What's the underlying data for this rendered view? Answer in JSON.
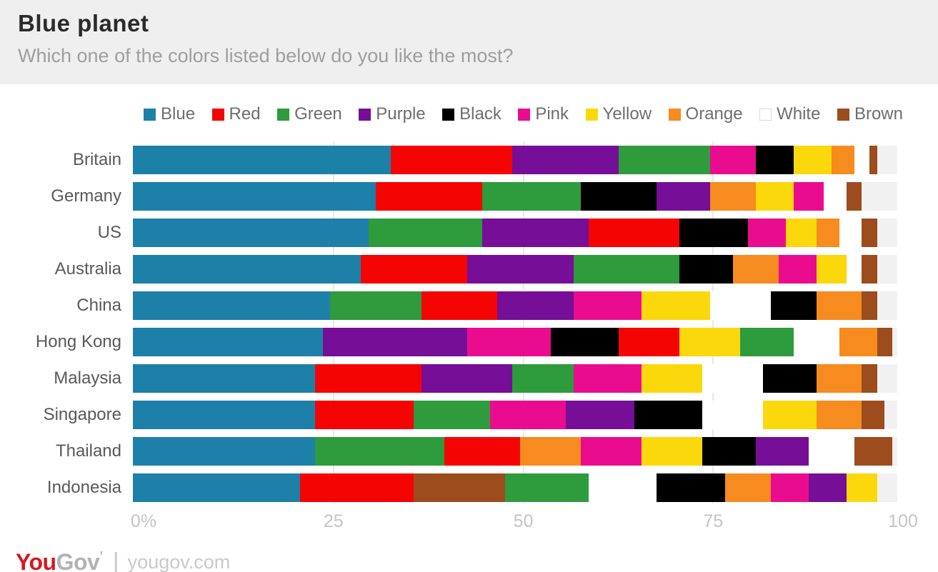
{
  "header": {
    "title": "Blue planet",
    "subtitle": "Which one of the colors listed below do you like the most?"
  },
  "footer": {
    "logo_part1": "You",
    "logo_part2": "Gov",
    "logo_mark": "’",
    "divider": "|",
    "url": "yougov.com"
  },
  "chart_data": {
    "type": "bar",
    "variant": "stacked-horizontal",
    "title": "Blue planet",
    "question": "Which one of the colors listed below do you like the most?",
    "unit": "percent",
    "xlim": [
      0,
      100
    ],
    "x_ticks": [
      {
        "label": "0%",
        "value": 0
      },
      {
        "label": "25",
        "value": 25
      },
      {
        "label": "50",
        "value": 50
      },
      {
        "label": "75",
        "value": 75
      },
      {
        "label": "100",
        "value": 100
      }
    ],
    "grid": "vertical",
    "legend_position": "top",
    "legend": [
      "Blue",
      "Red",
      "Green",
      "Purple",
      "Black",
      "Pink",
      "Yellow",
      "Orange",
      "White",
      "Brown"
    ],
    "palette": {
      "Blue": "#1d80a8",
      "Red": "#f50404",
      "Green": "#2e9b3d",
      "Purple": "#760e97",
      "Black": "#000000",
      "Pink": "#ea0c8f",
      "Yellow": "#fbd80c",
      "Orange": "#f68b1f",
      "White": "#ffffff",
      "Brown": "#9c4c1d"
    },
    "categories": [
      "Britain",
      "Germany",
      "US",
      "Australia",
      "China",
      "Hong Kong",
      "Malaysia",
      "Singapore",
      "Thailand",
      "Indonesia"
    ],
    "rows": [
      {
        "country": "Britain",
        "segments": [
          [
            "Blue",
            34
          ],
          [
            "Red",
            16
          ],
          [
            "Purple",
            14
          ],
          [
            "Green",
            12
          ],
          [
            "Pink",
            6
          ],
          [
            "Black",
            5
          ],
          [
            "Yellow",
            5
          ],
          [
            "Orange",
            3
          ],
          [
            "White",
            2
          ],
          [
            "Brown",
            1
          ]
        ]
      },
      {
        "country": "Germany",
        "segments": [
          [
            "Blue",
            32
          ],
          [
            "Red",
            14
          ],
          [
            "Green",
            13
          ],
          [
            "Black",
            10
          ],
          [
            "Purple",
            7
          ],
          [
            "Orange",
            6
          ],
          [
            "Yellow",
            5
          ],
          [
            "Pink",
            4
          ],
          [
            "White",
            3
          ],
          [
            "Brown",
            2
          ]
        ]
      },
      {
        "country": "US",
        "segments": [
          [
            "Blue",
            31
          ],
          [
            "Green",
            15
          ],
          [
            "Purple",
            14
          ],
          [
            "Red",
            12
          ],
          [
            "Black",
            9
          ],
          [
            "Pink",
            5
          ],
          [
            "Yellow",
            4
          ],
          [
            "Orange",
            3
          ],
          [
            "White",
            3
          ],
          [
            "Brown",
            2
          ]
        ]
      },
      {
        "country": "Australia",
        "segments": [
          [
            "Blue",
            30
          ],
          [
            "Red",
            14
          ],
          [
            "Purple",
            14
          ],
          [
            "Green",
            14
          ],
          [
            "Black",
            7
          ],
          [
            "Orange",
            6
          ],
          [
            "Pink",
            5
          ],
          [
            "Yellow",
            4
          ],
          [
            "White",
            2
          ],
          [
            "Brown",
            2
          ]
        ]
      },
      {
        "country": "China",
        "segments": [
          [
            "Blue",
            26
          ],
          [
            "Green",
            12
          ],
          [
            "Red",
            10
          ],
          [
            "Purple",
            10
          ],
          [
            "Pink",
            9
          ],
          [
            "Yellow",
            9
          ],
          [
            "White",
            8
          ],
          [
            "Black",
            6
          ],
          [
            "Orange",
            6
          ],
          [
            "Brown",
            2
          ]
        ]
      },
      {
        "country": "Hong Kong",
        "segments": [
          [
            "Blue",
            25
          ],
          [
            "Purple",
            19
          ],
          [
            "Pink",
            11
          ],
          [
            "Black",
            9
          ],
          [
            "Red",
            8
          ],
          [
            "Yellow",
            8
          ],
          [
            "Green",
            7
          ],
          [
            "White",
            6
          ],
          [
            "Orange",
            5
          ],
          [
            "Brown",
            2
          ]
        ]
      },
      {
        "country": "Malaysia",
        "segments": [
          [
            "Blue",
            24
          ],
          [
            "Red",
            14
          ],
          [
            "Purple",
            12
          ],
          [
            "Green",
            8
          ],
          [
            "Pink",
            9
          ],
          [
            "Yellow",
            8
          ],
          [
            "White",
            8
          ],
          [
            "Black",
            7
          ],
          [
            "Orange",
            6
          ],
          [
            "Brown",
            2
          ]
        ]
      },
      {
        "country": "Singapore",
        "segments": [
          [
            "Blue",
            24
          ],
          [
            "Red",
            13
          ],
          [
            "Green",
            10
          ],
          [
            "Pink",
            10
          ],
          [
            "Purple",
            9
          ],
          [
            "Black",
            9
          ],
          [
            "White",
            8
          ],
          [
            "Yellow",
            7
          ],
          [
            "Orange",
            6
          ],
          [
            "Brown",
            3
          ]
        ]
      },
      {
        "country": "Thailand",
        "segments": [
          [
            "Blue",
            24
          ],
          [
            "Green",
            17
          ],
          [
            "Red",
            10
          ],
          [
            "Orange",
            8
          ],
          [
            "Pink",
            8
          ],
          [
            "Yellow",
            8
          ],
          [
            "Black",
            7
          ],
          [
            "Purple",
            7
          ],
          [
            "White",
            6
          ],
          [
            "Brown",
            5
          ]
        ]
      },
      {
        "country": "Indonesia",
        "segments": [
          [
            "Blue",
            22
          ],
          [
            "Red",
            15
          ],
          [
            "Brown",
            12
          ],
          [
            "Green",
            11
          ],
          [
            "White",
            9
          ],
          [
            "Black",
            9
          ],
          [
            "Orange",
            6
          ],
          [
            "Pink",
            5
          ],
          [
            "Purple",
            5
          ],
          [
            "Yellow",
            4
          ]
        ]
      }
    ]
  }
}
